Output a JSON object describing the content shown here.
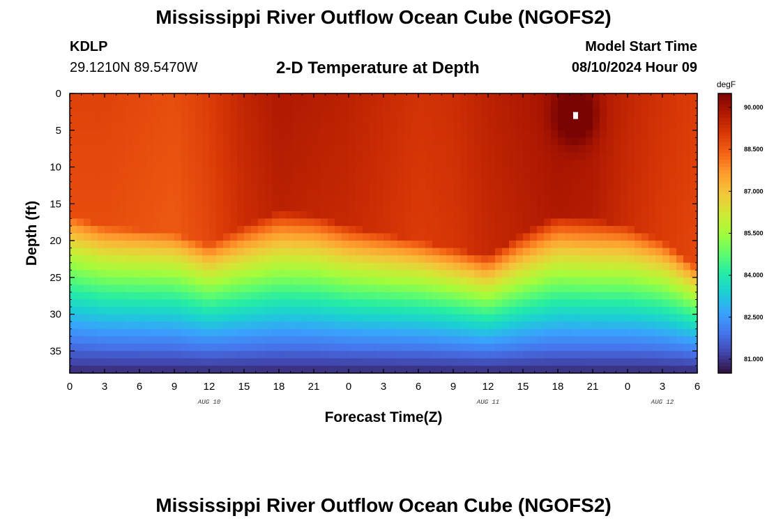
{
  "header": {
    "title": "Mississippi River Outflow Ocean Cube (NGOFS2)",
    "station_id": "KDLP",
    "coordinates": "29.1210N  89.5470W",
    "subtitle": "2-D Temperature at Depth",
    "model_start_label": "Model Start Time",
    "model_start_value": "08/10/2024 Hour 09"
  },
  "footer": {
    "title": "Mississippi River Outflow Ocean Cube (NGOFS2)"
  },
  "chart_data": {
    "type": "heatmap",
    "title": "2-D Temperature at Depth",
    "xlabel": "Forecast Time(Z)",
    "ylabel": "Depth (ft)",
    "xlim": [
      0,
      54
    ],
    "ylim": [
      0,
      38
    ],
    "x_ticks": [
      {
        "value": 0,
        "label": "0"
      },
      {
        "value": 3,
        "label": "3"
      },
      {
        "value": 6,
        "label": "6"
      },
      {
        "value": 9,
        "label": "9"
      },
      {
        "value": 12,
        "label": "12"
      },
      {
        "value": 15,
        "label": "15"
      },
      {
        "value": 18,
        "label": "18"
      },
      {
        "value": 21,
        "label": "21"
      },
      {
        "value": 24,
        "label": "0"
      },
      {
        "value": 27,
        "label": "3"
      },
      {
        "value": 30,
        "label": "6"
      },
      {
        "value": 33,
        "label": "9"
      },
      {
        "value": 36,
        "label": "12"
      },
      {
        "value": 39,
        "label": "15"
      },
      {
        "value": 42,
        "label": "18"
      },
      {
        "value": 45,
        "label": "21"
      },
      {
        "value": 48,
        "label": "0"
      },
      {
        "value": 51,
        "label": "3"
      },
      {
        "value": 54,
        "label": "6"
      }
    ],
    "date_labels": [
      {
        "value": 12,
        "label": "AUG 10"
      },
      {
        "value": 36,
        "label": "AUG 11"
      },
      {
        "value": 51,
        "label": "AUG 12"
      }
    ],
    "y_ticks": [
      0,
      5,
      10,
      15,
      20,
      25,
      30,
      35
    ],
    "colorbar": {
      "unit": "degF",
      "min": 80.5,
      "max": 90.5,
      "ticks": [
        "81.000",
        "82.500",
        "84.000",
        "85.500",
        "87.000",
        "88.500",
        "90.000"
      ],
      "colors": [
        "#30123b",
        "#4145ab",
        "#4675ed",
        "#39a2fc",
        "#1bcfd4",
        "#24eca6",
        "#61fc6c",
        "#a4fc3b",
        "#d1e834",
        "#f3c63a",
        "#fe9b2d",
        "#f36315",
        "#d93806",
        "#b11901",
        "#7a0403"
      ]
    },
    "series_description": "Temperature (degF) vs forecast hour and depth",
    "thermocline_depth_ft": [
      {
        "x": 0,
        "depth": 19.5
      },
      {
        "x": 3,
        "depth": 21
      },
      {
        "x": 6,
        "depth": 21.5
      },
      {
        "x": 9,
        "depth": 22
      },
      {
        "x": 12,
        "depth": 23.5
      },
      {
        "x": 15,
        "depth": 21
      },
      {
        "x": 18,
        "depth": 19
      },
      {
        "x": 21,
        "depth": 19.5
      },
      {
        "x": 24,
        "depth": 21
      },
      {
        "x": 27,
        "depth": 22
      },
      {
        "x": 30,
        "depth": 23
      },
      {
        "x": 33,
        "depth": 24
      },
      {
        "x": 36,
        "depth": 25
      },
      {
        "x": 39,
        "depth": 22
      },
      {
        "x": 42,
        "depth": 19.5
      },
      {
        "x": 45,
        "depth": 20
      },
      {
        "x": 48,
        "depth": 21
      },
      {
        "x": 51,
        "depth": 23
      },
      {
        "x": 54,
        "depth": 26.5
      }
    ],
    "surface_temp_degF": [
      {
        "x": 0,
        "temp": 88.9
      },
      {
        "x": 3,
        "temp": 88.9
      },
      {
        "x": 6,
        "temp": 88.8
      },
      {
        "x": 9,
        "temp": 88.7
      },
      {
        "x": 12,
        "temp": 89.0
      },
      {
        "x": 15,
        "temp": 89.5
      },
      {
        "x": 18,
        "temp": 89.8
      },
      {
        "x": 21,
        "temp": 89.7
      },
      {
        "x": 24,
        "temp": 89.6
      },
      {
        "x": 27,
        "temp": 89.4
      },
      {
        "x": 30,
        "temp": 89.2
      },
      {
        "x": 33,
        "temp": 89.3
      },
      {
        "x": 36,
        "temp": 89.6
      },
      {
        "x": 39,
        "temp": 89.8
      },
      {
        "x": 42,
        "temp": 90.0
      },
      {
        "x": 45,
        "temp": 89.9
      },
      {
        "x": 48,
        "temp": 89.5
      },
      {
        "x": 51,
        "temp": 89.2
      },
      {
        "x": 54,
        "temp": 89.0
      }
    ],
    "bottom_temp_degF": 80.8,
    "hotspot": {
      "x": 43.5,
      "depth": 3,
      "temp": 90.5
    }
  }
}
